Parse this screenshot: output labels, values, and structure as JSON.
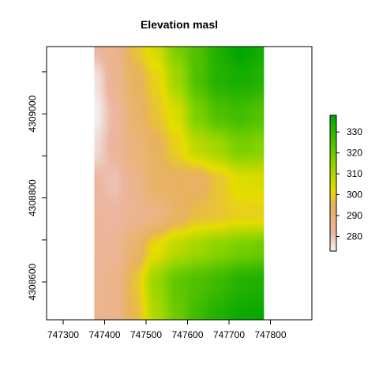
{
  "chart_data": {
    "type": "heatmap",
    "title": "Elevation masl",
    "xlim": [
      747260,
      747900
    ],
    "ylim": [
      4308510,
      4309160
    ],
    "raster_extent": {
      "x": [
        747375,
        747785
      ],
      "y": [
        4308510,
        4309160
      ]
    },
    "x_ticks": [
      {
        "value": 747300,
        "label": "747300"
      },
      {
        "value": 747400,
        "label": "747400"
      },
      {
        "value": 747500,
        "label": "747500"
      },
      {
        "value": 747600,
        "label": "747600"
      },
      {
        "value": 747700,
        "label": "747700"
      },
      {
        "value": 747800,
        "label": "747800"
      }
    ],
    "y_ticks": [
      {
        "value": 4308600,
        "label": "4308600",
        "labeled": true
      },
      {
        "value": 4308700,
        "label": "",
        "labeled": false
      },
      {
        "value": 4308800,
        "label": "4308800",
        "labeled": true
      },
      {
        "value": 4308900,
        "label": "",
        "labeled": false
      },
      {
        "value": 4309000,
        "label": "4309000",
        "labeled": true
      },
      {
        "value": 4309100,
        "label": "",
        "labeled": false
      }
    ],
    "colorbar": {
      "range": [
        273,
        338
      ],
      "ticks": [
        280,
        290,
        300,
        310,
        320,
        330
      ],
      "colors": [
        {
          "value": 273,
          "color": "#f2f2f2"
        },
        {
          "value": 282,
          "color": "#ecb5a0"
        },
        {
          "value": 295,
          "color": "#e8b35b"
        },
        {
          "value": 302,
          "color": "#e6dd00"
        },
        {
          "value": 316,
          "color": "#85d300"
        },
        {
          "value": 338,
          "color": "#00a600"
        }
      ]
    },
    "grid": false,
    "legend": "right",
    "elevation_grid": {
      "cols_x": [
        747375,
        747425,
        747475,
        747525,
        747575,
        747625,
        747675,
        747725,
        747785
      ],
      "rows_y": [
        4309160,
        4309080,
        4309000,
        4308920,
        4308840,
        4308760,
        4308680,
        4308600,
        4308510
      ],
      "values": [
        [
          282,
          285,
          298,
          305,
          318,
          325,
          333,
          338,
          335
        ],
        [
          275,
          285,
          294,
          300,
          312,
          325,
          332,
          334,
          332
        ],
        [
          273,
          282,
          292,
          298,
          304,
          318,
          325,
          327,
          324
        ],
        [
          276,
          283,
          289,
          294,
          300,
          308,
          312,
          318,
          316
        ],
        [
          282,
          280,
          286,
          293,
          294,
          293,
          298,
          303,
          304
        ],
        [
          283,
          282,
          285,
          287,
          293,
          297,
          298,
          300,
          300
        ],
        [
          283,
          284,
          292,
          302,
          308,
          312,
          315,
          318,
          320
        ],
        [
          284,
          286,
          298,
          313,
          322,
          325,
          328,
          332,
          333
        ],
        [
          285,
          286,
          296,
          310,
          320,
          328,
          333,
          336,
          337
        ]
      ]
    }
  }
}
